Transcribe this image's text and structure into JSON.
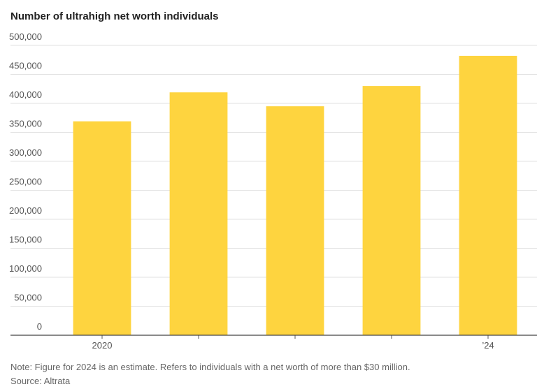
{
  "chart_data": {
    "type": "bar",
    "title": "Number of ultrahigh net worth individuals",
    "categories": [
      "2020",
      null,
      null,
      null,
      "’24"
    ],
    "values": [
      369000,
      419000,
      395000,
      430000,
      482000
    ],
    "color": "#fed43f",
    "ylim": [
      0,
      500000
    ],
    "yticks": [
      0,
      {
        "value": 50000,
        "label": "50,000"
      },
      {
        "value": 100000,
        "label": "100,000"
      },
      {
        "value": 150000,
        "label": "150,000"
      },
      {
        "value": 200000,
        "label": "200,000"
      },
      {
        "value": 250000,
        "label": "250,000"
      },
      {
        "value": 300000,
        "label": "300,000"
      },
      {
        "value": 350000,
        "label": "350,000"
      },
      {
        "value": 400000,
        "label": "400,000"
      },
      {
        "value": 450000,
        "label": "450,000"
      },
      {
        "value": 500000,
        "label": "500,000"
      }
    ],
    "grid": true,
    "note": "Note: Figure for 2024 is an estimate. Refers to individuals with a net worth of more than $30 million.",
    "source": "Source: Altrata"
  }
}
